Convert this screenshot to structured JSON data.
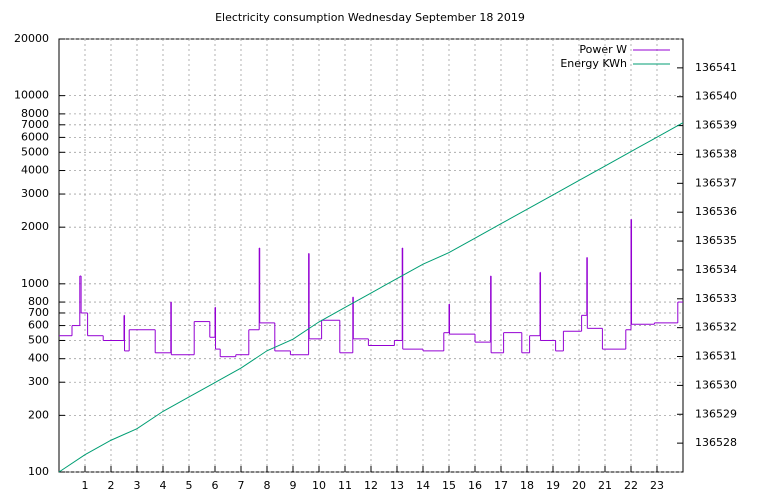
{
  "chart_data": {
    "type": "line",
    "title": "Electricity consumption Wednesday September 18 2019",
    "log_y": true,
    "grid": true,
    "legend": "top-right",
    "drawstyle_power": "steps",
    "xlim": [
      0,
      24
    ],
    "xticks": [
      1,
      2,
      3,
      4,
      5,
      6,
      7,
      8,
      9,
      10,
      11,
      12,
      13,
      14,
      15,
      16,
      17,
      18,
      19,
      20,
      21,
      22,
      23
    ],
    "ylim": [
      100,
      20000
    ],
    "yticks": [
      100,
      200,
      300,
      400,
      500,
      600,
      700,
      800,
      1000,
      2000,
      3000,
      4000,
      5000,
      6000,
      7000,
      8000,
      10000,
      20000
    ],
    "y2lim": [
      136527,
      136542
    ],
    "y2ticks": [
      136528,
      136529,
      136530,
      136531,
      136532,
      136533,
      136534,
      136535,
      136536,
      136537,
      136538,
      136539,
      136540,
      136541
    ],
    "series": [
      {
        "name": "Power W",
        "color": "#9400d3",
        "x": [
          0,
          0.5,
          0.8,
          0.85,
          1.1,
          1.7,
          2.5,
          2.52,
          2.7,
          3.7,
          4.3,
          4.32,
          5.2,
          5.8,
          6.0,
          6.02,
          6.2,
          6.8,
          7.3,
          7.7,
          7.72,
          8.3,
          8.9,
          9.6,
          9.62,
          10.1,
          10.8,
          11.3,
          11.32,
          11.9,
          12.9,
          13.2,
          13.22,
          14.0,
          14.8,
          15.0,
          15.02,
          16.0,
          16.6,
          16.62,
          17.1,
          17.8,
          18.1,
          18.5,
          18.52,
          19.1,
          19.4,
          20.1,
          20.3,
          20.32,
          20.9,
          21.8,
          22.0,
          22.02,
          22.9,
          23.8
        ],
        "values": [
          530,
          600,
          1100,
          700,
          530,
          500,
          680,
          440,
          570,
          430,
          800,
          420,
          630,
          520,
          750,
          450,
          410,
          420,
          570,
          1550,
          620,
          440,
          420,
          1450,
          510,
          640,
          430,
          850,
          510,
          470,
          500,
          1550,
          450,
          440,
          550,
          780,
          540,
          490,
          1100,
          430,
          550,
          430,
          530,
          1150,
          500,
          440,
          560,
          680,
          1380,
          580,
          450,
          570,
          2200,
          610,
          620,
          800
        ]
      },
      {
        "name": "Energy KWh",
        "color": "#009e73",
        "axis": "y2",
        "x": [
          0,
          1,
          2,
          3,
          4,
          5,
          6,
          7,
          8,
          9,
          10,
          11,
          12,
          13,
          14,
          15,
          16,
          17,
          18,
          19,
          20,
          21,
          22,
          23,
          24
        ],
        "values": [
          136527.0,
          136527.6,
          136528.1,
          136528.5,
          136529.1,
          136529.6,
          136530.1,
          136530.6,
          136531.2,
          136531.6,
          136532.2,
          136532.7,
          136533.2,
          136533.7,
          136534.2,
          136534.6,
          136535.1,
          136535.6,
          136536.1,
          136536.6,
          136537.1,
          136537.6,
          136538.1,
          136538.6,
          136539.1
        ]
      }
    ]
  }
}
